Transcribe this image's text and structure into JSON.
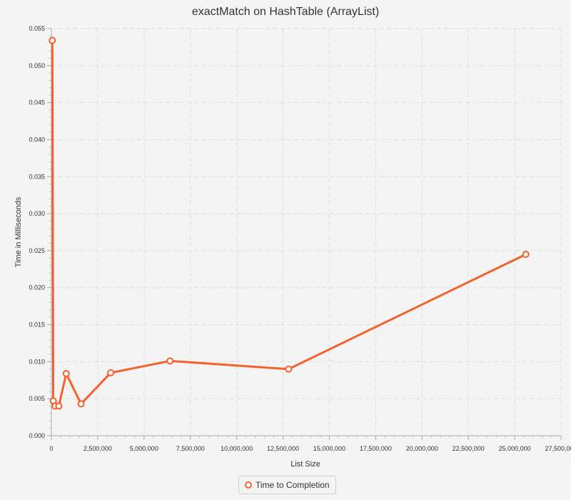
{
  "chart_data": {
    "type": "line",
    "title": "exactMatch on HashTable (ArrayList)",
    "xlabel": "List Size",
    "ylabel": "Time in Milliseconds",
    "xlim": [
      0,
      27500000
    ],
    "ylim": [
      0,
      0.055
    ],
    "x_ticks": [
      "0",
      "2,500,000",
      "5,000,000",
      "7,500,000",
      "10,000,000",
      "12,500,000",
      "15,000,000",
      "17,500,000",
      "20,000,000",
      "22,500,000",
      "25,000,000",
      "27,500,000"
    ],
    "y_ticks": [
      "0.000",
      "0.005",
      "0.010",
      "0.015",
      "0.020",
      "0.025",
      "0.030",
      "0.035",
      "0.040",
      "0.045",
      "0.050",
      "0.055"
    ],
    "grid": true,
    "legend_position": "bottom",
    "series": [
      {
        "name": "Time to Completion",
        "color": "#f3622d",
        "x": [
          50000,
          100000,
          200000,
          400000,
          800000,
          1600000,
          3200000,
          6400000,
          12800000,
          25600000
        ],
        "y": [
          0.0534,
          0.0047,
          0.004,
          0.004,
          0.0084,
          0.0043,
          0.0085,
          0.0101,
          0.009,
          0.0245
        ]
      }
    ]
  }
}
